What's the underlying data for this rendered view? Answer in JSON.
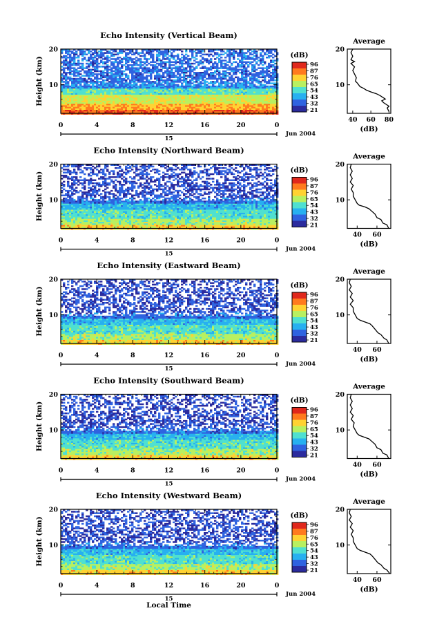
{
  "figure": {
    "xlabel": "Local Time",
    "date_label": "Jun 2004",
    "day_label": "15",
    "colorbar_unit": "(dB)",
    "colorbar_ticks": [
      "96",
      "87",
      "76",
      "65",
      "54",
      "43",
      "32",
      "21"
    ],
    "colormap": [
      "#2b2b9e",
      "#2f63e0",
      "#27b0f0",
      "#4fe0d0",
      "#b8f060",
      "#ffd232",
      "#ff7a1e",
      "#e0281c"
    ]
  },
  "chart_data": [
    {
      "type": "heatmap",
      "title": "Echo Intensity (Vertical Beam)",
      "ylabel": "Height (km)",
      "xlim": [
        0,
        24
      ],
      "ylim": [
        2,
        20
      ],
      "x_ticks": [
        "0",
        "4",
        "8",
        "12",
        "16",
        "20",
        "0"
      ],
      "y_ticks": [
        "10",
        "20"
      ],
      "color_range_db": [
        21,
        96
      ],
      "average_profile": {
        "title": "Average",
        "xlabel": "(dB)",
        "xlim": [
          34,
          82
        ],
        "x_ticks": [
          "40",
          "60",
          "80"
        ],
        "y_ticks": [
          "10",
          "20"
        ],
        "profile": [
          [
            80,
            2.5
          ],
          [
            78,
            3.5
          ],
          [
            80,
            4
          ],
          [
            74,
            5
          ],
          [
            72,
            5.5
          ],
          [
            76,
            6
          ],
          [
            70,
            7
          ],
          [
            66,
            7.5
          ],
          [
            60,
            8
          ],
          [
            55,
            8.5
          ],
          [
            52,
            9
          ],
          [
            48,
            9.5
          ],
          [
            45,
            10.5
          ],
          [
            43,
            11
          ],
          [
            44,
            12
          ],
          [
            42,
            13
          ],
          [
            40,
            14
          ],
          [
            42,
            15
          ],
          [
            38,
            16
          ],
          [
            42,
            16.5
          ],
          [
            38,
            17
          ],
          [
            40,
            18
          ],
          [
            38,
            19
          ],
          [
            40,
            20
          ]
        ]
      }
    },
    {
      "type": "heatmap",
      "title": "Echo Intensity (Northward Beam)",
      "ylabel": "Height (km)",
      "xlim": [
        0,
        24
      ],
      "ylim": [
        2,
        20
      ],
      "x_ticks": [
        "0",
        "4",
        "8",
        "12",
        "16",
        "20",
        "0"
      ],
      "y_ticks": [
        "10",
        "20"
      ],
      "color_range_db": [
        21,
        96
      ],
      "average_profile": {
        "title": "Average",
        "xlabel": "(dB)",
        "xlim": [
          30,
          74
        ],
        "x_ticks": [
          "40",
          "60"
        ],
        "y_ticks": [
          "10",
          "20"
        ],
        "profile": [
          [
            72,
            2
          ],
          [
            70,
            3
          ],
          [
            66,
            3.5
          ],
          [
            64,
            4.5
          ],
          [
            60,
            5
          ],
          [
            58,
            6
          ],
          [
            54,
            7
          ],
          [
            52,
            7.5
          ],
          [
            48,
            8
          ],
          [
            42,
            8.5
          ],
          [
            40,
            9
          ],
          [
            38,
            10
          ],
          [
            36,
            11
          ],
          [
            36,
            12
          ],
          [
            34,
            13
          ],
          [
            36,
            14
          ],
          [
            33,
            15
          ],
          [
            35,
            16
          ],
          [
            33,
            17
          ],
          [
            35,
            18
          ],
          [
            33,
            19
          ],
          [
            34,
            20
          ]
        ]
      }
    },
    {
      "type": "heatmap",
      "title": "Echo Intensity (Eastward Beam)",
      "ylabel": "Height (km)",
      "xlim": [
        0,
        24
      ],
      "ylim": [
        2,
        20
      ],
      "x_ticks": [
        "0",
        "4",
        "8",
        "12",
        "16",
        "20",
        "0"
      ],
      "y_ticks": [
        "10",
        "20"
      ],
      "color_range_db": [
        21,
        96
      ],
      "average_profile": {
        "title": "Average",
        "xlabel": "(dB)",
        "xlim": [
          30,
          74
        ],
        "x_ticks": [
          "40",
          "60"
        ],
        "y_ticks": [
          "10",
          "20"
        ],
        "profile": [
          [
            72,
            2
          ],
          [
            70,
            3
          ],
          [
            67,
            3.5
          ],
          [
            64,
            4.5
          ],
          [
            61,
            5
          ],
          [
            58,
            6
          ],
          [
            55,
            7
          ],
          [
            53,
            7.5
          ],
          [
            48,
            8
          ],
          [
            43,
            8.5
          ],
          [
            40,
            9
          ],
          [
            38,
            10
          ],
          [
            36,
            11
          ],
          [
            36,
            12
          ],
          [
            33,
            13
          ],
          [
            36,
            14
          ],
          [
            33,
            15
          ],
          [
            35,
            16
          ],
          [
            32,
            17
          ],
          [
            34,
            18
          ],
          [
            32,
            19
          ],
          [
            33,
            20
          ]
        ]
      }
    },
    {
      "type": "heatmap",
      "title": "Echo Intensity (Southward Beam)",
      "ylabel": "Height (km)",
      "xlim": [
        0,
        24
      ],
      "ylim": [
        2,
        20
      ],
      "x_ticks": [
        "0",
        "4",
        "8",
        "12",
        "16",
        "20",
        "0"
      ],
      "y_ticks": [
        "10",
        "20"
      ],
      "color_range_db": [
        21,
        96
      ],
      "average_profile": {
        "title": "Average",
        "xlabel": "(dB)",
        "xlim": [
          30,
          74
        ],
        "x_ticks": [
          "40",
          "60"
        ],
        "y_ticks": [
          "10",
          "20"
        ],
        "profile": [
          [
            72,
            2
          ],
          [
            70,
            3
          ],
          [
            66,
            3.5
          ],
          [
            64,
            4.5
          ],
          [
            60,
            5
          ],
          [
            58,
            6
          ],
          [
            54,
            7
          ],
          [
            52,
            7.5
          ],
          [
            47,
            8
          ],
          [
            42,
            8.5
          ],
          [
            40,
            9
          ],
          [
            38,
            10
          ],
          [
            36,
            11
          ],
          [
            37,
            12
          ],
          [
            34,
            13
          ],
          [
            36,
            14
          ],
          [
            33,
            15
          ],
          [
            35,
            16
          ],
          [
            33,
            17
          ],
          [
            35,
            18
          ],
          [
            33,
            19
          ],
          [
            34,
            20
          ]
        ]
      }
    },
    {
      "type": "heatmap",
      "title": "Echo Intensity (Westward Beam)",
      "ylabel": "Height (km)",
      "xlim": [
        0,
        24
      ],
      "ylim": [
        2,
        20
      ],
      "x_ticks": [
        "0",
        "4",
        "8",
        "12",
        "16",
        "20",
        "0"
      ],
      "y_ticks": [
        "10",
        "20"
      ],
      "color_range_db": [
        21,
        96
      ],
      "average_profile": {
        "title": "Average",
        "xlabel": "(dB)",
        "xlim": [
          30,
          74
        ],
        "x_ticks": [
          "40",
          "60"
        ],
        "y_ticks": [
          "10",
          "20"
        ],
        "profile": [
          [
            73,
            2
          ],
          [
            70,
            3
          ],
          [
            67,
            3.5
          ],
          [
            64,
            4.5
          ],
          [
            61,
            5
          ],
          [
            58,
            6
          ],
          [
            55,
            7
          ],
          [
            53,
            7.5
          ],
          [
            48,
            8
          ],
          [
            43,
            8.5
          ],
          [
            40,
            9
          ],
          [
            38,
            10
          ],
          [
            36,
            11
          ],
          [
            36,
            12
          ],
          [
            34,
            13
          ],
          [
            36,
            14
          ],
          [
            33,
            15
          ],
          [
            35,
            16
          ],
          [
            32,
            17
          ],
          [
            34,
            18
          ],
          [
            32,
            19
          ],
          [
            33,
            20
          ]
        ]
      }
    }
  ]
}
